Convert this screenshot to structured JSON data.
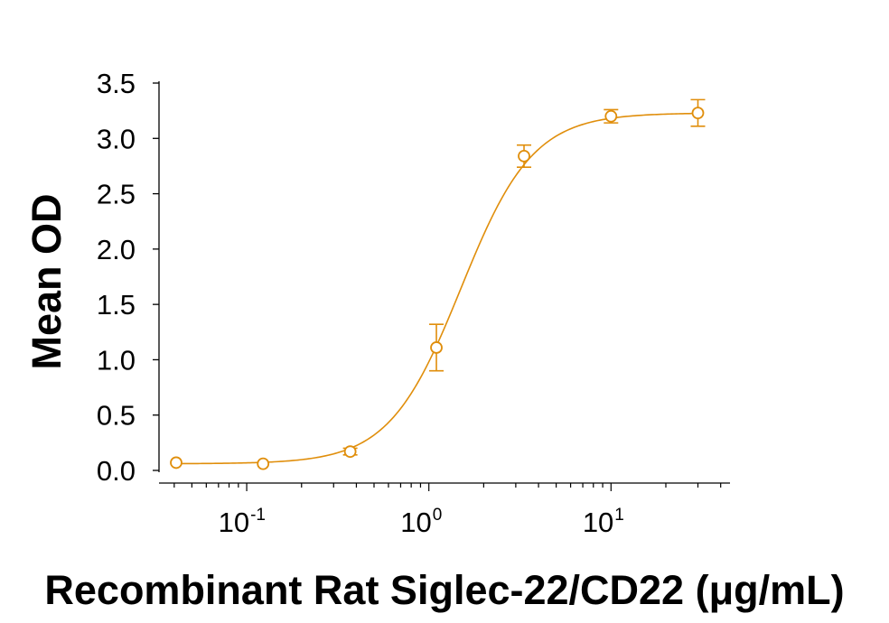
{
  "chart_data": {
    "type": "scatter",
    "x_scale": "log",
    "xlabel": "Recombinant Rat Siglec-22/CD22 (μg/mL)",
    "ylabel": "Mean OD",
    "xlim": [
      0.033,
      45
    ],
    "ylim": [
      0.0,
      3.5
    ],
    "grid": false,
    "y_ticks": [
      "0.0",
      "0.5",
      "1.0",
      "1.5",
      "2.0",
      "2.5",
      "3.0",
      "3.5"
    ],
    "x_ticks": [
      {
        "value": 0.1,
        "base": "10",
        "exponent": "-1"
      },
      {
        "value": 1,
        "base": "10",
        "exponent": "0"
      },
      {
        "value": 10,
        "base": "10",
        "exponent": "1"
      }
    ],
    "series": [
      {
        "color": "#E08E0B",
        "marker": "open-circle",
        "fit": "4PL",
        "fit_params": {
          "bottom": 0.06,
          "top": 3.23,
          "ec50": 1.5,
          "hill": 2.2
        },
        "points": [
          {
            "x": 0.041,
            "y": 0.07,
            "err": 0.0
          },
          {
            "x": 0.123,
            "y": 0.06,
            "err": 0.0
          },
          {
            "x": 0.37,
            "y": 0.17,
            "err": 0.03
          },
          {
            "x": 1.1,
            "y": 1.11,
            "err": 0.21
          },
          {
            "x": 3.33,
            "y": 2.84,
            "err": 0.1
          },
          {
            "x": 10.0,
            "y": 3.2,
            "err": 0.06
          },
          {
            "x": 30.0,
            "y": 3.23,
            "err": 0.12
          }
        ]
      }
    ]
  }
}
